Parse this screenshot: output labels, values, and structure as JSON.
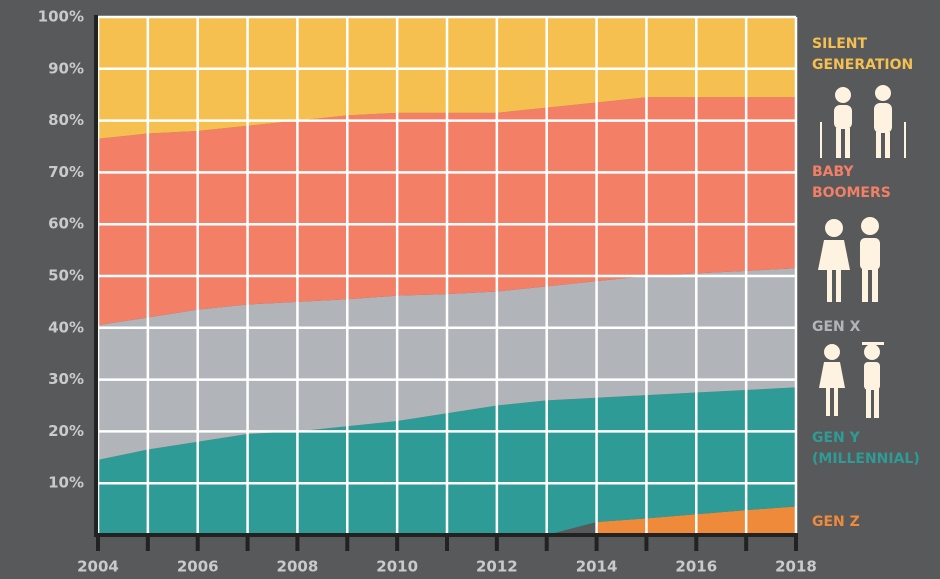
{
  "chart_data": {
    "type": "stacked_area",
    "x": [
      2004,
      2005,
      2006,
      2007,
      2008,
      2009,
      2010,
      2011,
      2012,
      2013,
      2014,
      2015,
      2016,
      2017,
      2018
    ],
    "series": [
      {
        "name": "GEN Z",
        "color": "#ef8a3a",
        "values": [
          null,
          null,
          null,
          null,
          null,
          null,
          null,
          null,
          null,
          null,
          2.5,
          3.2,
          4,
          4.8,
          5.5
        ]
      },
      {
        "name": "GEN Y (MILLENNIAL)",
        "color": "#2e9b96",
        "values": [
          14.5,
          16.5,
          18,
          19.5,
          20,
          21,
          22,
          23.5,
          25,
          26,
          24,
          23.8,
          23.5,
          23.2,
          23
        ]
      },
      {
        "name": "GEN X",
        "color": "#b1b5b9",
        "values": [
          26,
          25.5,
          25.5,
          25,
          25,
          24.5,
          24.2,
          23,
          22,
          22,
          22.5,
          23,
          23,
          23,
          23
        ]
      },
      {
        "name": "BABY BOOMERS",
        "color": "#f47f67",
        "values": [
          36,
          35.5,
          34.5,
          34.5,
          35,
          35.5,
          35.3,
          35,
          34.5,
          34.5,
          34.5,
          34.5,
          34,
          33.5,
          33
        ]
      },
      {
        "name": "SILENT GENERATION",
        "color": "#f5c04f",
        "values": [
          23.5,
          22.5,
          22,
          21,
          20,
          19,
          18.5,
          18.5,
          18.5,
          17.5,
          16.5,
          15.5,
          15.5,
          15.5,
          15.5
        ]
      }
    ],
    "xlim": [
      2004,
      2018
    ],
    "xticks": [
      2004,
      2006,
      2008,
      2010,
      2012,
      2014,
      2016,
      2018
    ],
    "ylim": [
      0,
      100
    ],
    "yticks": [
      {
        "value": 10,
        "label": "10%"
      },
      {
        "value": 20,
        "label": "20%"
      },
      {
        "value": 30,
        "label": "30%"
      },
      {
        "value": 40,
        "label": "40%"
      },
      {
        "value": 50,
        "label": "50%"
      },
      {
        "value": 60,
        "label": "60%"
      },
      {
        "value": 70,
        "label": "70%"
      },
      {
        "value": 80,
        "label": "80%"
      },
      {
        "value": 90,
        "label": "90%"
      },
      {
        "value": 100,
        "label": "100%"
      }
    ],
    "grid": true
  }
}
